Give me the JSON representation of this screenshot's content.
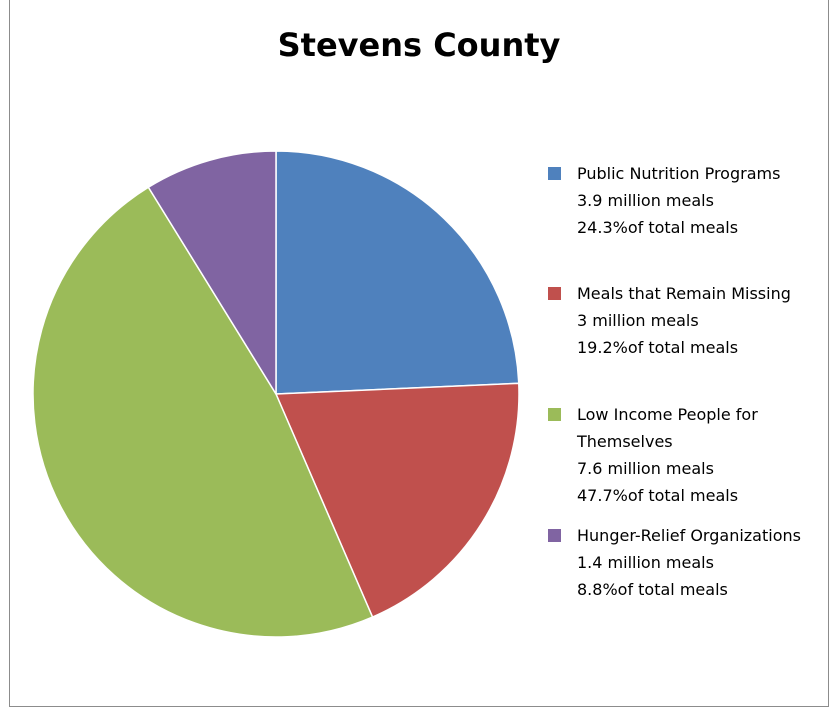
{
  "chart_data": {
    "type": "pie",
    "title": "Stevens County",
    "start_angle_deg": 0,
    "direction": "clockwise",
    "legend_position": "right",
    "slices": [
      {
        "label": "Public Nutrition Programs",
        "amount": "3.9 million meals",
        "percent_text": "24.3%of total meals",
        "value": 24.3,
        "color": "#4f81bd"
      },
      {
        "label": "Meals that Remain Missing",
        "amount": "3 million meals",
        "percent_text": "19.2%of total meals",
        "value": 19.2,
        "color": "#c0504d"
      },
      {
        "label": "Low Income People for Themselves",
        "amount": "7.6 million meals",
        "percent_text": "47.7%of total meals",
        "value": 47.7,
        "color": "#9bbb59"
      },
      {
        "label": "Hunger-Relief Organizations",
        "amount": "1.4 million meals",
        "percent_text": "8.8%of total meals",
        "value": 8.8,
        "color": "#8064a2"
      }
    ]
  }
}
